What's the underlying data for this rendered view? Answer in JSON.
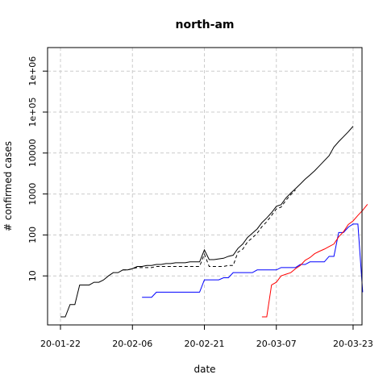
{
  "chart_data": {
    "type": "line",
    "title": "north-am",
    "xlabel": "date",
    "ylabel": "# confirmed cases",
    "y_scale": "log",
    "xlim": [
      "2020-01-21",
      "2020-03-24"
    ],
    "ylim": [
      0.5,
      3000000
    ],
    "grid": true,
    "x_ticks": [
      "20-01-22",
      "20-02-06",
      "20-02-21",
      "20-03-07",
      "20-03-23"
    ],
    "y_ticks": [
      "10",
      "100",
      "1000",
      "10000",
      "1e+05",
      "1e+06"
    ],
    "series": [
      {
        "color": "#000000",
        "dash": "solid",
        "points": [
          [
            "2020-01-22",
            1
          ],
          [
            "2020-01-23",
            1
          ],
          [
            "2020-01-24",
            2
          ],
          [
            "2020-01-25",
            2
          ],
          [
            "2020-01-26",
            6
          ],
          [
            "2020-01-27",
            6
          ],
          [
            "2020-01-28",
            6
          ],
          [
            "2020-01-29",
            7
          ],
          [
            "2020-01-30",
            7
          ],
          [
            "2020-01-31",
            8
          ],
          [
            "2020-02-01",
            10
          ],
          [
            "2020-02-02",
            12
          ],
          [
            "2020-02-03",
            12
          ],
          [
            "2020-02-04",
            14
          ],
          [
            "2020-02-05",
            14
          ],
          [
            "2020-02-06",
            15
          ],
          [
            "2020-02-07",
            17
          ],
          [
            "2020-02-08",
            17
          ],
          [
            "2020-02-09",
            18
          ],
          [
            "2020-02-10",
            18
          ],
          [
            "2020-02-11",
            19
          ],
          [
            "2020-02-12",
            19
          ],
          [
            "2020-02-13",
            20
          ],
          [
            "2020-02-14",
            20
          ],
          [
            "2020-02-15",
            21
          ],
          [
            "2020-02-16",
            21
          ],
          [
            "2020-02-17",
            21
          ],
          [
            "2020-02-18",
            22
          ],
          [
            "2020-02-19",
            22
          ],
          [
            "2020-02-20",
            22
          ],
          [
            "2020-02-21",
            43
          ],
          [
            "2020-02-22",
            25
          ],
          [
            "2020-02-23",
            25
          ],
          [
            "2020-02-24",
            26
          ],
          [
            "2020-02-25",
            27
          ],
          [
            "2020-02-26",
            30
          ],
          [
            "2020-02-27",
            32
          ],
          [
            "2020-02-28",
            47
          ],
          [
            "2020-02-29",
            60
          ],
          [
            "2020-03-01",
            87
          ],
          [
            "2020-03-02",
            110
          ],
          [
            "2020-03-03",
            140
          ],
          [
            "2020-03-04",
            200
          ],
          [
            "2020-03-05",
            260
          ],
          [
            "2020-03-06",
            350
          ],
          [
            "2020-03-07",
            500
          ],
          [
            "2020-03-08",
            550
          ],
          [
            "2020-03-09",
            800
          ],
          [
            "2020-03-10",
            1050
          ],
          [
            "2020-03-11",
            1350
          ],
          [
            "2020-03-12",
            1750
          ],
          [
            "2020-03-13",
            2300
          ],
          [
            "2020-03-14",
            2900
          ],
          [
            "2020-03-15",
            3700
          ],
          [
            "2020-03-16",
            4900
          ],
          [
            "2020-03-17",
            6500
          ],
          [
            "2020-03-18",
            8600
          ],
          [
            "2020-03-19",
            14000
          ],
          [
            "2020-03-20",
            19000
          ],
          [
            "2020-03-21",
            25000
          ],
          [
            "2020-03-22",
            33000
          ],
          [
            "2020-03-23",
            45000
          ]
        ]
      },
      {
        "color": "#000000",
        "dash": "dashed",
        "points": [
          [
            "2020-02-04",
            14
          ],
          [
            "2020-02-05",
            14
          ],
          [
            "2020-02-06",
            15
          ],
          [
            "2020-02-07",
            16
          ],
          [
            "2020-02-08",
            16
          ],
          [
            "2020-02-09",
            16
          ],
          [
            "2020-02-10",
            16
          ],
          [
            "2020-02-11",
            17
          ],
          [
            "2020-02-12",
            17
          ],
          [
            "2020-02-13",
            17
          ],
          [
            "2020-02-14",
            17
          ],
          [
            "2020-02-15",
            17
          ],
          [
            "2020-02-16",
            17
          ],
          [
            "2020-02-17",
            17
          ],
          [
            "2020-02-18",
            17
          ],
          [
            "2020-02-19",
            17
          ],
          [
            "2020-02-20",
            17
          ],
          [
            "2020-02-21",
            34
          ],
          [
            "2020-02-22",
            17
          ],
          [
            "2020-02-23",
            17
          ],
          [
            "2020-02-24",
            17
          ],
          [
            "2020-02-25",
            17
          ],
          [
            "2020-02-26",
            18
          ],
          [
            "2020-02-27",
            18
          ],
          [
            "2020-02-28",
            38
          ],
          [
            "2020-02-29",
            45
          ],
          [
            "2020-03-01",
            68
          ],
          [
            "2020-03-02",
            85
          ],
          [
            "2020-03-03",
            110
          ],
          [
            "2020-03-04",
            160
          ],
          [
            "2020-03-05",
            210
          ],
          [
            "2020-03-06",
            300
          ],
          [
            "2020-03-07",
            430
          ],
          [
            "2020-03-08",
            480
          ],
          [
            "2020-03-09",
            700
          ],
          [
            "2020-03-10",
            960
          ],
          [
            "2020-03-11",
            1250
          ]
        ]
      },
      {
        "color": "#0000ff",
        "dash": "solid",
        "points": [
          [
            "2020-02-08",
            3
          ],
          [
            "2020-02-09",
            3
          ],
          [
            "2020-02-10",
            3
          ],
          [
            "2020-02-11",
            4
          ],
          [
            "2020-02-12",
            4
          ],
          [
            "2020-02-13",
            4
          ],
          [
            "2020-02-14",
            4
          ],
          [
            "2020-02-15",
            4
          ],
          [
            "2020-02-16",
            4
          ],
          [
            "2020-02-17",
            4
          ],
          [
            "2020-02-18",
            4
          ],
          [
            "2020-02-19",
            4
          ],
          [
            "2020-02-20",
            4
          ],
          [
            "2020-02-21",
            8
          ],
          [
            "2020-02-22",
            8
          ],
          [
            "2020-02-23",
            8
          ],
          [
            "2020-02-24",
            8
          ],
          [
            "2020-02-25",
            9
          ],
          [
            "2020-02-26",
            9
          ],
          [
            "2020-02-27",
            12
          ],
          [
            "2020-02-28",
            12
          ],
          [
            "2020-02-29",
            12
          ],
          [
            "2020-03-01",
            12
          ],
          [
            "2020-03-02",
            12
          ],
          [
            "2020-03-03",
            14
          ],
          [
            "2020-03-04",
            14
          ],
          [
            "2020-03-05",
            14
          ],
          [
            "2020-03-06",
            14
          ],
          [
            "2020-03-07",
            14
          ],
          [
            "2020-03-08",
            16
          ],
          [
            "2020-03-09",
            16
          ],
          [
            "2020-03-10",
            16
          ],
          [
            "2020-03-11",
            16
          ],
          [
            "2020-03-12",
            19
          ],
          [
            "2020-03-13",
            19
          ],
          [
            "2020-03-14",
            22
          ],
          [
            "2020-03-15",
            22
          ],
          [
            "2020-03-16",
            22
          ],
          [
            "2020-03-17",
            22
          ],
          [
            "2020-03-18",
            30
          ],
          [
            "2020-03-19",
            30
          ],
          [
            "2020-03-20",
            115
          ],
          [
            "2020-03-21",
            115
          ],
          [
            "2020-03-22",
            155
          ],
          [
            "2020-03-23",
            185
          ],
          [
            "2020-03-24",
            185
          ],
          [
            "2020-03-25",
            4
          ]
        ]
      },
      {
        "color": "#ff0000",
        "dash": "solid",
        "points": [
          [
            "2020-03-04",
            1
          ],
          [
            "2020-03-05",
            1
          ],
          [
            "2020-03-06",
            6
          ],
          [
            "2020-03-07",
            7
          ],
          [
            "2020-03-08",
            10
          ],
          [
            "2020-03-09",
            11
          ],
          [
            "2020-03-10",
            12
          ],
          [
            "2020-03-11",
            15
          ],
          [
            "2020-03-12",
            18
          ],
          [
            "2020-03-13",
            24
          ],
          [
            "2020-03-14",
            28
          ],
          [
            "2020-03-15",
            35
          ],
          [
            "2020-03-16",
            40
          ],
          [
            "2020-03-17",
            45
          ],
          [
            "2020-03-18",
            52
          ],
          [
            "2020-03-19",
            60
          ],
          [
            "2020-03-20",
            90
          ],
          [
            "2020-03-21",
            120
          ],
          [
            "2020-03-22",
            180
          ],
          [
            "2020-03-23",
            220
          ],
          [
            "2020-03-24",
            300
          ],
          [
            "2020-03-25",
            400
          ],
          [
            "2020-03-26",
            560
          ]
        ]
      }
    ]
  }
}
